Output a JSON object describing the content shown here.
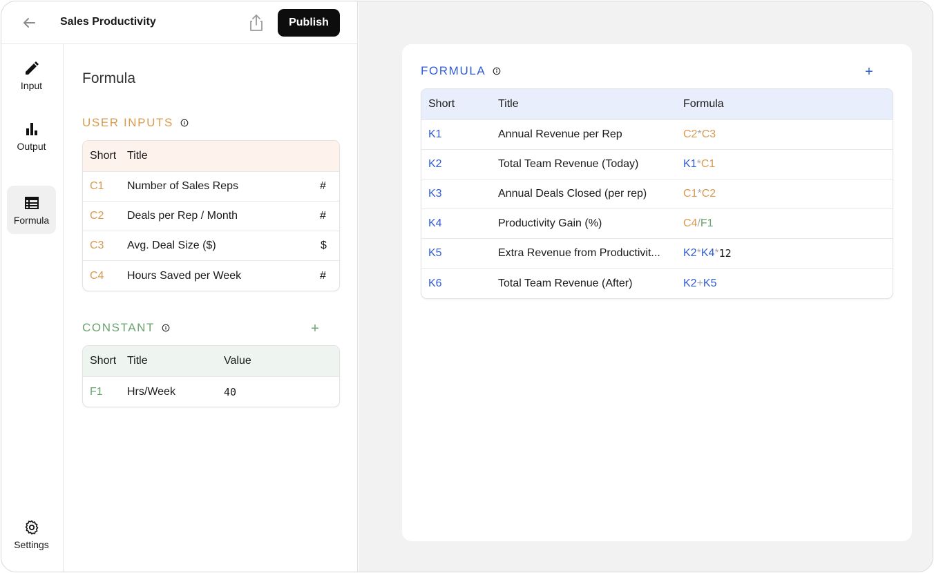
{
  "header": {
    "title": "Sales Productivity",
    "publish_label": "Publish"
  },
  "rail": {
    "items": [
      {
        "label": "Input",
        "icon": "pencil-icon"
      },
      {
        "label": "Output",
        "icon": "bar-chart-icon"
      },
      {
        "label": "Formula",
        "icon": "table-list-icon"
      }
    ],
    "settings_label": "Settings"
  },
  "editor": {
    "title": "Formula",
    "user_inputs": {
      "label": "USER INPUTS",
      "columns": {
        "short": "Short",
        "title": "Title"
      },
      "rows": [
        {
          "short": "C1",
          "title": "Number of Sales Reps",
          "unit": "#"
        },
        {
          "short": "C2",
          "title": "Deals per Rep / Month",
          "unit": "#"
        },
        {
          "short": "C3",
          "title": "Avg. Deal Size ($)",
          "unit": "$"
        },
        {
          "short": "C4",
          "title": "Hours Saved per Week",
          "unit": "#"
        }
      ]
    },
    "constant": {
      "label": "CONSTANT",
      "add_label": "+",
      "columns": {
        "short": "Short",
        "title": "Title",
        "value": "Value"
      },
      "rows": [
        {
          "short": "F1",
          "title": "Hrs/Week",
          "value": "40"
        }
      ]
    }
  },
  "formula": {
    "label": "FORMULA",
    "add_label": "+",
    "columns": {
      "short": "Short",
      "title": "Title",
      "formula": "Formula"
    },
    "rows": [
      {
        "short": "K1",
        "title": "Annual Revenue per Rep",
        "tokens": [
          "C2",
          "*",
          "C3"
        ]
      },
      {
        "short": "K2",
        "title": "Total Team Revenue (Today)",
        "tokens": [
          "K1",
          "*",
          "C1"
        ]
      },
      {
        "short": "K3",
        "title": "Annual Deals Closed (per rep)",
        "tokens": [
          "C1",
          "*",
          "C2"
        ]
      },
      {
        "short": "K4",
        "title": "Productivity Gain (%)",
        "tokens": [
          "C4",
          "/",
          "F1"
        ]
      },
      {
        "short": "K5",
        "title": "Extra Revenue from Productivit...",
        "tokens": [
          "K2",
          "*",
          "K4",
          "*",
          "12"
        ]
      },
      {
        "short": "K6",
        "title": "Total Team Revenue (After)",
        "tokens": [
          "K2",
          "+",
          "K5"
        ]
      }
    ]
  },
  "colors": {
    "user_input": "#d89a4f",
    "constant": "#6aa36f",
    "formula": "#2f5bd6",
    "operator": "#a8a8a8",
    "publish_bg": "#0d0d0d"
  }
}
